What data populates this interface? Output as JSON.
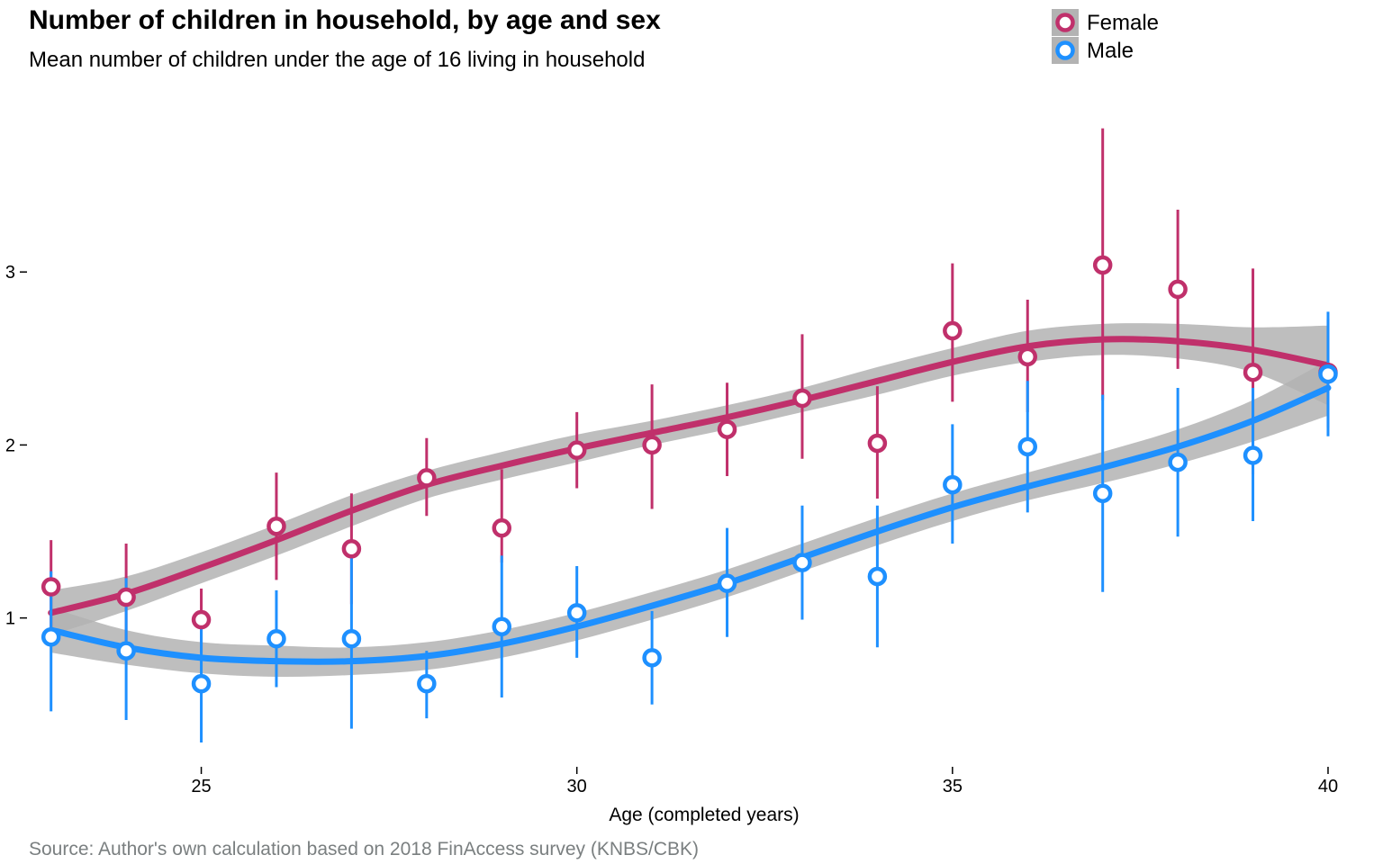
{
  "chart_data": {
    "type": "scatter",
    "title": "Number of children in household, by age and sex",
    "subtitle": "Mean number of children under the age of 16 living in household",
    "xlabel": "Age (completed years)",
    "ylabel": "",
    "caption": "Source: Author's own calculation based on 2018 FinAccess survey (KNBS/CBK)",
    "xlim": [
      22.8,
      40.3
    ],
    "ylim": [
      0.15,
      4.0
    ],
    "x_ticks": [
      25,
      30,
      35,
      40
    ],
    "y_ticks": [
      1,
      2,
      3
    ],
    "x_tick_labels": [
      "25",
      "30",
      "35",
      "40"
    ],
    "y_tick_labels": [
      "1",
      "2",
      "3"
    ],
    "grid": false,
    "legend_position": "top-right",
    "smooth_band_color": "#b3b3b3",
    "series": [
      {
        "name": "Female",
        "color": "#c0306b",
        "x": [
          23,
          24,
          25,
          26,
          27,
          28,
          29,
          30,
          31,
          32,
          33,
          34,
          35,
          36,
          37,
          38,
          39,
          40
        ],
        "mean": [
          1.18,
          1.12,
          0.99,
          1.53,
          1.4,
          1.81,
          1.52,
          1.97,
          2.0,
          2.09,
          2.27,
          2.01,
          2.66,
          2.51,
          3.04,
          2.9,
          2.42,
          2.42
        ],
        "lower": [
          0.92,
          0.84,
          0.8,
          1.22,
          1.08,
          1.59,
          1.32,
          1.75,
          1.63,
          1.82,
          1.92,
          1.69,
          2.25,
          2.19,
          2.26,
          2.44,
          1.83,
          2.1
        ],
        "upper": [
          1.45,
          1.43,
          1.17,
          1.84,
          1.72,
          2.04,
          1.86,
          2.19,
          2.35,
          2.36,
          2.64,
          2.34,
          3.05,
          2.84,
          3.83,
          3.36,
          3.02,
          2.73
        ],
        "smooth_x": [
          23,
          24,
          25,
          26,
          27,
          28,
          29,
          30,
          31,
          32,
          33,
          34,
          35,
          36,
          37,
          38,
          39,
          40
        ],
        "smooth_y": [
          1.03,
          1.14,
          1.29,
          1.45,
          1.62,
          1.77,
          1.88,
          1.98,
          2.07,
          2.16,
          2.26,
          2.37,
          2.48,
          2.57,
          2.61,
          2.6,
          2.55,
          2.46
        ],
        "smooth_se": [
          0.13,
          0.1,
          0.09,
          0.09,
          0.09,
          0.08,
          0.08,
          0.08,
          0.07,
          0.07,
          0.07,
          0.08,
          0.08,
          0.09,
          0.09,
          0.1,
          0.13,
          0.23
        ]
      },
      {
        "name": "Male",
        "color": "#1e90ff",
        "x": [
          23,
          24,
          25,
          26,
          27,
          28,
          29,
          30,
          31,
          32,
          33,
          34,
          35,
          36,
          37,
          38,
          39,
          40
        ],
        "mean": [
          0.89,
          0.81,
          0.62,
          0.88,
          0.88,
          0.62,
          0.95,
          1.03,
          0.77,
          1.2,
          1.32,
          1.24,
          1.77,
          1.99,
          1.72,
          1.9,
          1.94,
          2.41
        ],
        "lower": [
          0.46,
          0.41,
          0.28,
          0.6,
          0.36,
          0.42,
          0.54,
          0.77,
          0.5,
          0.89,
          0.99,
          0.83,
          1.43,
          1.61,
          1.15,
          1.47,
          1.56,
          2.05
        ],
        "upper": [
          1.27,
          1.23,
          0.96,
          1.16,
          1.37,
          0.81,
          1.36,
          1.3,
          1.04,
          1.52,
          1.65,
          1.65,
          2.12,
          2.37,
          2.29,
          2.33,
          2.33,
          2.77
        ],
        "smooth_x": [
          23,
          24,
          25,
          26,
          27,
          28,
          29,
          30,
          31,
          32,
          33,
          34,
          35,
          36,
          37,
          38,
          39,
          40
        ],
        "smooth_y": [
          0.93,
          0.83,
          0.77,
          0.75,
          0.75,
          0.78,
          0.85,
          0.95,
          1.07,
          1.2,
          1.35,
          1.5,
          1.64,
          1.76,
          1.87,
          1.99,
          2.14,
          2.33
        ],
        "smooth_se": [
          0.13,
          0.1,
          0.09,
          0.09,
          0.08,
          0.08,
          0.08,
          0.08,
          0.08,
          0.08,
          0.08,
          0.08,
          0.08,
          0.08,
          0.09,
          0.1,
          0.12,
          0.16
        ]
      }
    ]
  }
}
